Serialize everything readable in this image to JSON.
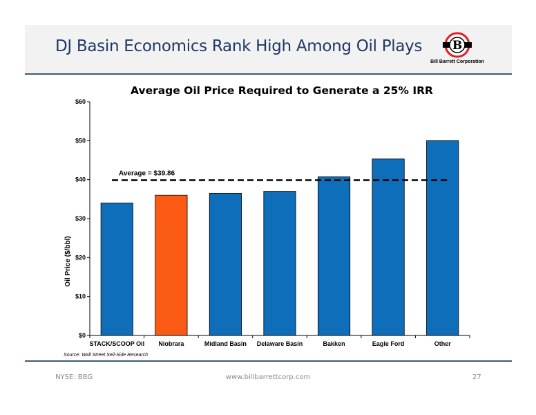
{
  "header": {
    "title": "DJ Basin Economics Rank High Among Oil Plays",
    "company_name": "Bill Barrett Corporation"
  },
  "chart_data": {
    "type": "bar",
    "title": "Average Oil Price Required to Generate a 25% IRR",
    "ylabel": "Oil Price ($/bbl)",
    "ylim": [
      0,
      60
    ],
    "yticks": [
      0,
      10,
      20,
      30,
      40,
      50,
      60
    ],
    "ytick_labels": [
      "$0",
      "$10",
      "$20",
      "$30",
      "$40",
      "$50",
      "$60"
    ],
    "categories": [
      "STACK/SCOOP Oil",
      "Niobrara",
      "Midland Basin",
      "Delaware Basin",
      "Bakken",
      "Eagle Ford",
      "Other"
    ],
    "values": [
      34.0,
      36.0,
      36.5,
      37.0,
      40.7,
      45.3,
      50.0
    ],
    "colors": [
      "#0f6eb9",
      "#fa5a14",
      "#0f6eb9",
      "#0f6eb9",
      "#0f6eb9",
      "#0f6eb9",
      "#0f6eb9"
    ],
    "average_value": 39.86,
    "average_label": "Average = $39.86",
    "grid": false
  },
  "source": "Source:  Wall Street Sell-Side Research",
  "footer": {
    "ticker": "NYSE: BBG",
    "website": "www.billbarrettcorp.com",
    "page_number": "27"
  }
}
